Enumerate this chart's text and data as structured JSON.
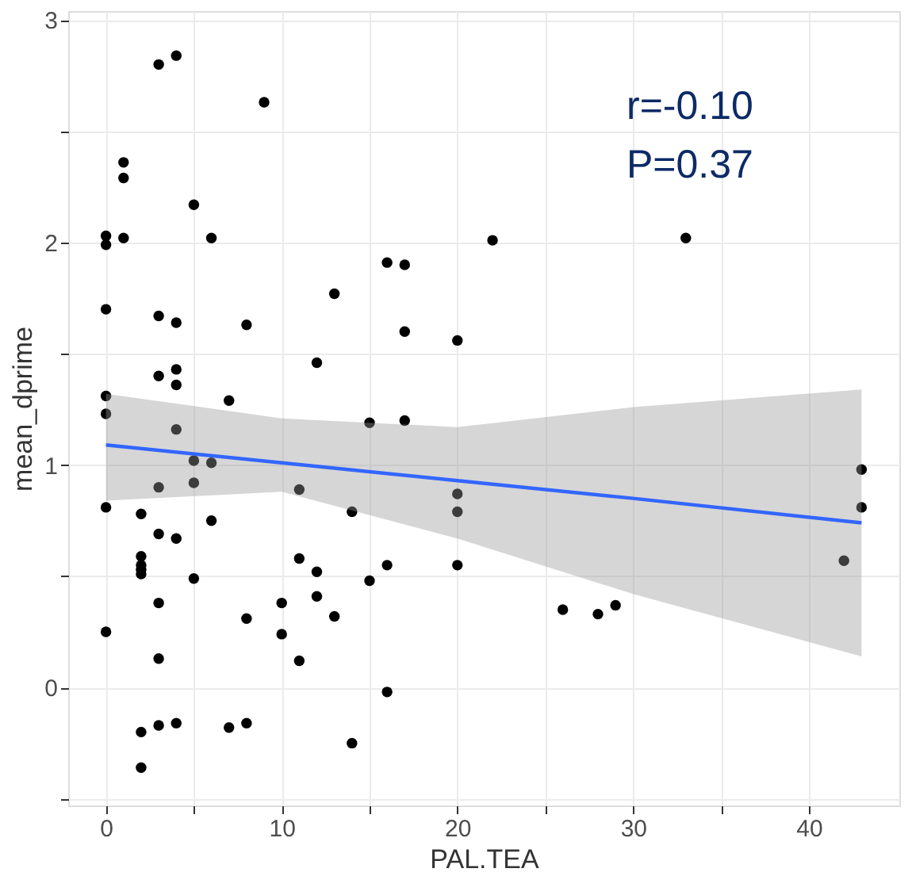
{
  "chart_data": {
    "type": "scatter",
    "xlabel": "PAL.TEA",
    "ylabel": "mean_dprime",
    "annotations": [
      "r=-0.10",
      "P=0.37"
    ],
    "xlim": [
      -2.15,
      45.15
    ],
    "ylim": [
      -0.53,
      3.04
    ],
    "xticks": [
      0,
      {
        "value": 5,
        "label": null
      },
      10,
      {
        "value": 15,
        "label": null
      },
      20,
      {
        "value": 25,
        "label": null
      },
      30,
      {
        "value": 35,
        "label": null
      },
      40
    ],
    "yticks": [
      {
        "value": -0.5,
        "label": null
      },
      0,
      {
        "value": 0.5,
        "label": null
      },
      1,
      {
        "value": 1.5,
        "label": null
      },
      2,
      {
        "value": 2.5,
        "label": null
      },
      3
    ],
    "grid": true,
    "series": [
      {
        "marker": "circle",
        "color": "#000000",
        "x": [
          3,
          4,
          9,
          1,
          1,
          5,
          0,
          0,
          1,
          6,
          16,
          17,
          13,
          0,
          3,
          4,
          8,
          17,
          20,
          12,
          3,
          4,
          4,
          0,
          0,
          7,
          15,
          17,
          4,
          5,
          6,
          3,
          5,
          11,
          20,
          20,
          14,
          0,
          2,
          3,
          4,
          6,
          2,
          2,
          2,
          2,
          5,
          11,
          12,
          15,
          16,
          20,
          3,
          10,
          12,
          13,
          8,
          0,
          10,
          11,
          3,
          16,
          2,
          3,
          4,
          7,
          8,
          14,
          2,
          22,
          33,
          43,
          43,
          42,
          26,
          28,
          29
        ],
        "values": [
          2.8,
          2.84,
          2.63,
          2.36,
          2.29,
          2.17,
          2.03,
          1.99,
          2.02,
          2.02,
          1.91,
          1.9,
          1.77,
          1.7,
          1.67,
          1.64,
          1.63,
          1.6,
          1.56,
          1.46,
          1.4,
          1.43,
          1.36,
          1.31,
          1.23,
          1.29,
          1.19,
          1.2,
          1.16,
          1.02,
          1.01,
          0.9,
          0.92,
          0.89,
          0.87,
          0.79,
          0.79,
          0.81,
          0.78,
          0.69,
          0.67,
          0.75,
          0.59,
          0.55,
          0.53,
          0.51,
          0.49,
          0.58,
          0.52,
          0.48,
          0.55,
          0.55,
          0.38,
          0.38,
          0.41,
          0.32,
          0.31,
          0.25,
          0.24,
          0.12,
          0.13,
          -0.02,
          -0.2,
          -0.17,
          -0.16,
          -0.18,
          -0.16,
          -0.25,
          -0.36,
          2.01,
          2.02,
          0.98,
          0.81,
          0.57,
          0.35,
          0.33,
          0.37
        ]
      },
      {
        "type": "line",
        "color": "#3366ff",
        "x": [
          0,
          10,
          20,
          30,
          43
        ],
        "values": [
          1.09,
          1.01,
          0.93,
          0.85,
          0.74
        ],
        "lower": [
          0.84,
          0.88,
          0.67,
          0.42,
          0.14
        ],
        "upper": [
          1.32,
          1.21,
          1.17,
          1.26,
          1.34
        ]
      }
    ]
  }
}
